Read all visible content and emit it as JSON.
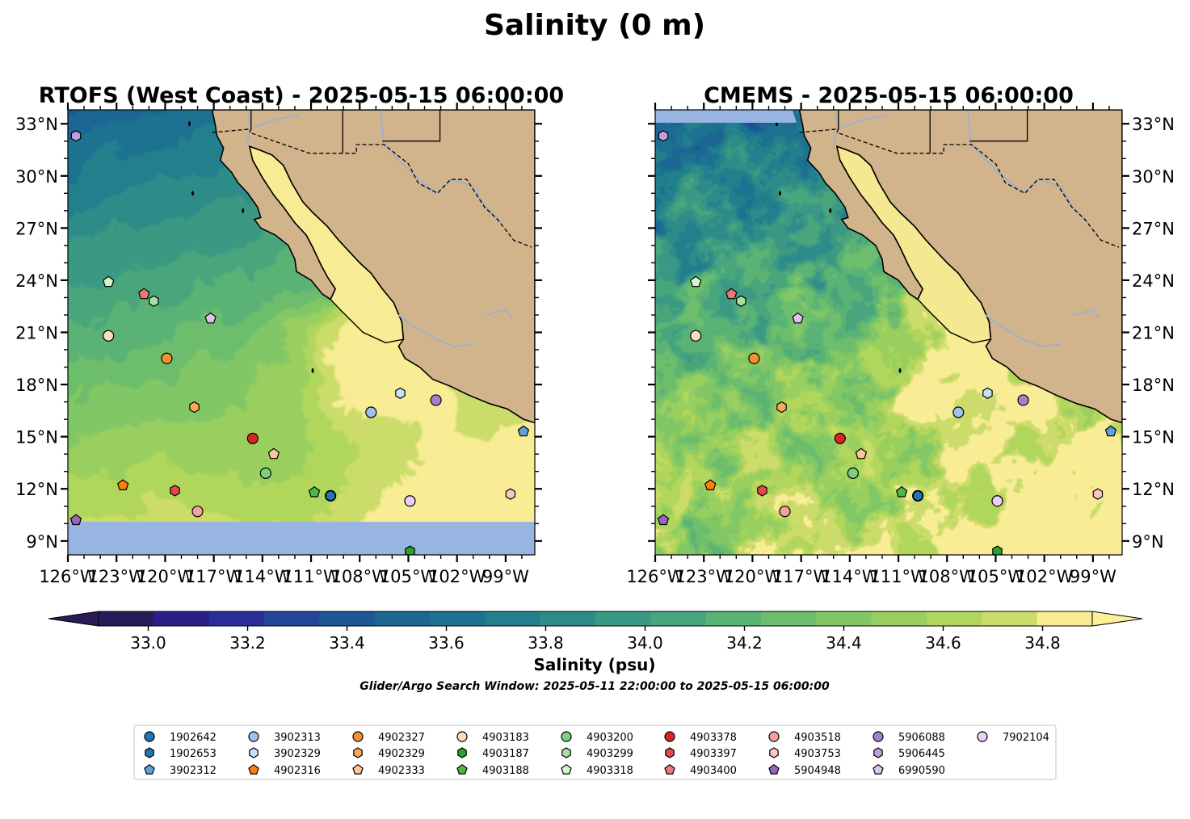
{
  "figure": {
    "suptitle": "Salinity (0 m)"
  },
  "panels": [
    {
      "id": "rtofs",
      "title": "RTOFS (West Coast) - 2025-05-15 06:00:00",
      "lat_labels_side": "left",
      "southern_limit_lat": 10.1
    },
    {
      "id": "cmems",
      "title": "CMEMS - 2025-05-15 06:00:00",
      "lat_labels_side": "right",
      "northern_gap": true
    }
  ],
  "map_extent": {
    "lon_min": -126,
    "lon_max": -97.2,
    "lat_min": 8.2,
    "lat_max": 33.8
  },
  "axes": {
    "lon_ticks": [
      -126,
      -123,
      -120,
      -117,
      -114,
      -111,
      -108,
      -105,
      -102,
      -99
    ],
    "lon_labels": [
      "126°W",
      "123°W",
      "120°W",
      "117°W",
      "114°W",
      "111°W",
      "108°W",
      "105°W",
      "102°W",
      "99°W"
    ],
    "lat_ticks": [
      33,
      30,
      27,
      24,
      21,
      18,
      15,
      12,
      9
    ],
    "lat_labels": [
      "33°N",
      "30°N",
      "27°N",
      "24°N",
      "21°N",
      "18°N",
      "15°N",
      "12°N",
      "9°N"
    ]
  },
  "colors": {
    "land": "#d2b48c",
    "nodata": "#98b4e0",
    "colormap": [
      "#271c57",
      "#2c1e87",
      "#2a2e9b",
      "#244598",
      "#1c5896",
      "#1c6693",
      "#1d7290",
      "#21808d",
      "#2d8c88",
      "#3a9983",
      "#48a67c",
      "#5ab275",
      "#6cbd6c",
      "#82c766",
      "#99cf5e",
      "#b1d65c",
      "#cbdc6b",
      "#f8ec95"
    ],
    "over": "#fbf097",
    "under": "#2a1b58"
  },
  "colorbar": {
    "min": 32.9,
    "max": 34.9,
    "step": 0.1,
    "ticks": [
      "33.0",
      "33.2",
      "33.4",
      "33.6",
      "33.8",
      "34.0",
      "34.2",
      "34.4",
      "34.6",
      "34.8"
    ],
    "tick_values": [
      33.0,
      33.2,
      33.4,
      33.6,
      33.8,
      34.0,
      34.2,
      34.4,
      34.6,
      34.8
    ],
    "label": "Salinity (psu)",
    "extend": "both"
  },
  "search_window_note": "Glider/Argo Search Window: 2025-05-11 22:00:00 to 2025-05-15 06:00:00",
  "floats": [
    {
      "id": "1902642",
      "lon": -109.8,
      "lat": 11.6,
      "marker": "circle",
      "color": "#1f77b4"
    },
    {
      "id": "1902653",
      "lon": -109.8,
      "lat": 11.6,
      "marker": "hexagon",
      "color": "#1f77b4"
    },
    {
      "id": "3902312",
      "lon": -97.9,
      "lat": 15.3,
      "marker": "pentagon",
      "color": "#5fa2d9"
    },
    {
      "id": "3902313",
      "lon": -107.3,
      "lat": 16.4,
      "marker": "circle",
      "color": "#9ec2ea"
    },
    {
      "id": "3902329",
      "lon": -105.5,
      "lat": 17.5,
      "marker": "hexagon",
      "color": "#c7e1f5"
    },
    {
      "id": "4902316",
      "lon": -122.6,
      "lat": 12.2,
      "marker": "pentagon",
      "color": "#ff7f0e"
    },
    {
      "id": "4902327",
      "lon": -119.9,
      "lat": 19.5,
      "marker": "circle",
      "color": "#f39233"
    },
    {
      "id": "4902329",
      "lon": -118.2,
      "lat": 16.7,
      "marker": "hexagon",
      "color": "#f9a85c"
    },
    {
      "id": "4902333",
      "lon": -113.3,
      "lat": 14.0,
      "marker": "pentagon",
      "color": "#fcc699"
    },
    {
      "id": "4903183",
      "lon": -123.5,
      "lat": 20.8,
      "marker": "circle",
      "color": "#fbdcbc"
    },
    {
      "id": "4903187",
      "lon": -104.9,
      "lat": 8.4,
      "marker": "hexagon",
      "color": "#2ca02c"
    },
    {
      "id": "4903188",
      "lon": -110.8,
      "lat": 11.8,
      "marker": "pentagon",
      "color": "#4cb84c"
    },
    {
      "id": "4903200",
      "lon": -113.8,
      "lat": 12.9,
      "marker": "circle",
      "color": "#7dd07d"
    },
    {
      "id": "4903299",
      "lon": -120.7,
      "lat": 22.8,
      "marker": "hexagon",
      "color": "#a8e0a2"
    },
    {
      "id": "4903318",
      "lon": -123.5,
      "lat": 23.9,
      "marker": "pentagon",
      "color": "#d3f5c8"
    },
    {
      "id": "4903378",
      "lon": -114.6,
      "lat": 14.9,
      "marker": "circle",
      "color": "#d62728"
    },
    {
      "id": "4903397",
      "lon": -119.4,
      "lat": 11.9,
      "marker": "hexagon",
      "color": "#e34a4a"
    },
    {
      "id": "4903400",
      "lon": -121.3,
      "lat": 23.2,
      "marker": "pentagon",
      "color": "#ef7777"
    },
    {
      "id": "4903518",
      "lon": -118.0,
      "lat": 10.7,
      "marker": "circle",
      "color": "#f5a0a0"
    },
    {
      "id": "4903753",
      "lon": -98.7,
      "lat": 11.7,
      "marker": "hexagon",
      "color": "#f9c6c0"
    },
    {
      "id": "5904948",
      "lon": -125.5,
      "lat": 10.2,
      "marker": "pentagon",
      "color": "#9467bd"
    },
    {
      "id": "5906088",
      "lon": -103.3,
      "lat": 17.1,
      "marker": "circle",
      "color": "#a77fcc"
    },
    {
      "id": "5906445",
      "lon": -125.5,
      "lat": 32.3,
      "marker": "hexagon",
      "color": "#c09ddb"
    },
    {
      "id": "6990590",
      "lon": -117.2,
      "lat": 21.8,
      "marker": "pentagon",
      "color": "#dcc2ee"
    },
    {
      "id": "7902104",
      "lon": -104.9,
      "lat": 11.3,
      "marker": "circle",
      "color": "#ebcff9"
    }
  ]
}
